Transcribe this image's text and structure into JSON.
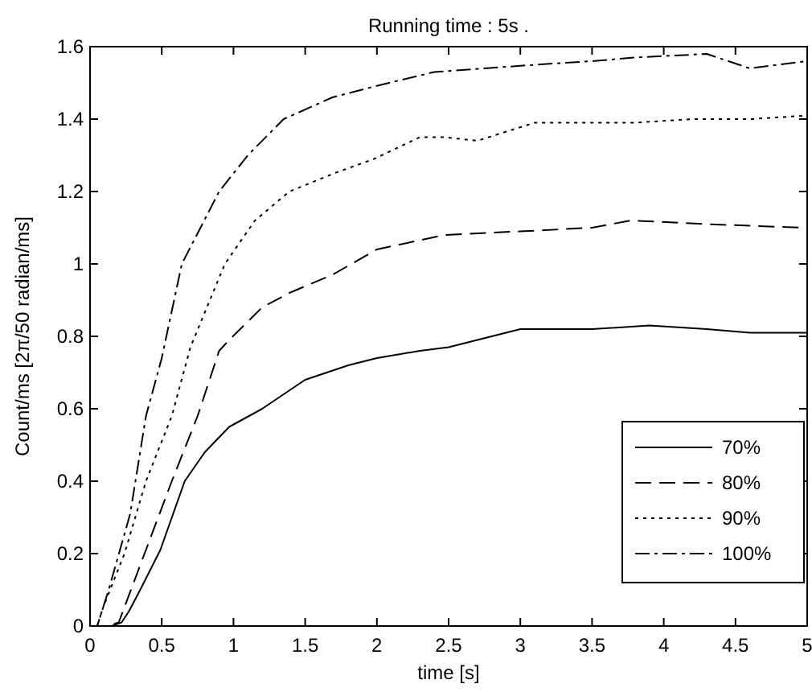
{
  "chart_data": {
    "type": "line",
    "title": "Running time : 5s .",
    "xlabel": "time [s]",
    "ylabel": "Count/ms [2π/50 radian/ms]",
    "xlim": [
      0,
      5
    ],
    "ylim": [
      0,
      1.6
    ],
    "xticks": [
      0,
      0.5,
      1,
      1.5,
      2,
      2.5,
      3,
      3.5,
      4,
      4.5,
      5
    ],
    "yticks": [
      0,
      0.2,
      0.4,
      0.6,
      0.8,
      1,
      1.2,
      1.4,
      1.6
    ],
    "legend": "right",
    "grid": false,
    "series": [
      {
        "name": "70%",
        "color": "#000000",
        "line_style": "solid",
        "x": [
          0,
          0.15,
          0.22,
          0.27,
          0.35,
          0.49,
          0.66,
          0.8,
          0.97,
          1.2,
          1.5,
          1.8,
          2,
          2.3,
          2.5,
          2.8,
          3,
          3.5,
          3.9,
          4.3,
          4.6,
          5
        ],
        "values": [
          0,
          0,
          0.01,
          0.04,
          0.1,
          0.21,
          0.4,
          0.48,
          0.55,
          0.6,
          0.68,
          0.72,
          0.74,
          0.76,
          0.77,
          0.8,
          0.82,
          0.82,
          0.83,
          0.82,
          0.81,
          0.81
        ]
      },
      {
        "name": "80%",
        "color": "#000000",
        "line_style": "dashed",
        "x": [
          0,
          0.12,
          0.2,
          0.38,
          0.57,
          0.75,
          0.9,
          0.97,
          1.2,
          1.39,
          1.69,
          2,
          2.47,
          3,
          3.5,
          3.77,
          4.3,
          4.97,
          5
        ],
        "values": [
          0,
          0,
          0.01,
          0.2,
          0.4,
          0.58,
          0.76,
          0.79,
          0.88,
          0.92,
          0.97,
          1.04,
          1.08,
          1.09,
          1.1,
          1.12,
          1.11,
          1.1,
          1.1
        ]
      },
      {
        "name": "90%",
        "color": "#000000",
        "line_style": "dotted",
        "x": [
          0,
          0.05,
          0.09,
          0.24,
          0.39,
          0.57,
          0.7,
          0.94,
          1.15,
          1.39,
          1.7,
          1.98,
          2.3,
          2.47,
          2.7,
          3.1,
          3.5,
          3.8,
          4.2,
          4.6,
          5
        ],
        "values": [
          0,
          0,
          0.05,
          0.2,
          0.4,
          0.58,
          0.77,
          1,
          1.12,
          1.2,
          1.25,
          1.29,
          1.35,
          1.35,
          1.34,
          1.39,
          1.39,
          1.39,
          1.4,
          1.4,
          1.41
        ]
      },
      {
        "name": "100%",
        "color": "#000000",
        "line_style": "dashdot",
        "x": [
          0,
          0.05,
          0.13,
          0.28,
          0.39,
          0.5,
          0.64,
          0.9,
          1.1,
          1.35,
          1.69,
          1.98,
          2.4,
          2.75,
          3.1,
          3.5,
          3.8,
          4.3,
          4.6,
          5
        ],
        "values": [
          0,
          0,
          0.1,
          0.31,
          0.58,
          0.74,
          1,
          1.2,
          1.3,
          1.4,
          1.46,
          1.49,
          1.53,
          1.54,
          1.55,
          1.56,
          1.57,
          1.58,
          1.54,
          1.56
        ]
      }
    ]
  }
}
